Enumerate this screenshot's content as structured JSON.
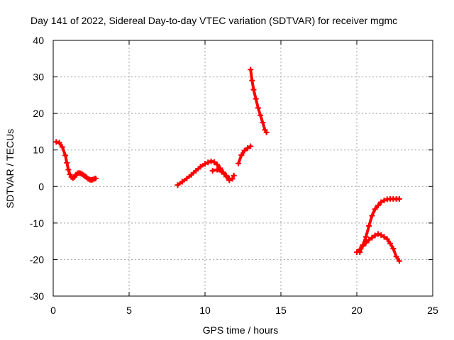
{
  "chart_data": {
    "type": "scatter",
    "title": "Day 141 of 2022, Sidereal Day-to-day VTEC variation (SDTVAR) for receiver mgmc",
    "xlabel": "GPS time / hours",
    "ylabel": "SDTVAR / TECUs",
    "xlim": [
      0,
      25
    ],
    "ylim": [
      -30,
      40
    ],
    "x_ticks": [
      0,
      5,
      10,
      15,
      20,
      25
    ],
    "y_ticks": [
      -30,
      -20,
      -10,
      0,
      10,
      20,
      30,
      40
    ],
    "x_tick_labels": [
      "0",
      "5",
      "10",
      "15",
      "20",
      "25"
    ],
    "y_tick_labels": [
      "-30",
      "-20",
      "-10",
      "0",
      "10",
      "20",
      "30",
      "40"
    ],
    "grid": true,
    "legend": "none",
    "marker": "plus",
    "series_color": "#ff0000",
    "series": [
      {
        "name": "segment-1",
        "x": [
          0.2,
          0.4,
          0.6,
          0.8,
          0.9,
          1.0,
          1.1,
          1.2,
          1.3,
          1.4,
          1.5,
          1.6,
          1.7,
          1.8,
          1.9,
          2.0,
          2.1,
          2.2,
          2.3,
          2.4,
          2.5,
          2.6,
          2.7,
          2.8
        ],
        "y": [
          12.2,
          12.0,
          10.8,
          8.5,
          6.5,
          4.6,
          3.3,
          2.6,
          2.3,
          2.6,
          3.2,
          3.6,
          3.7,
          3.6,
          3.4,
          3.1,
          2.8,
          2.5,
          2.1,
          1.9,
          1.8,
          1.9,
          2.1,
          2.2
        ]
      },
      {
        "name": "segment-2",
        "x": [
          8.2,
          8.5,
          8.8,
          9.1,
          9.4,
          9.7,
          10.0,
          10.2,
          10.4,
          10.6,
          10.8,
          11.0,
          11.2,
          11.4,
          11.6,
          11.8,
          11.9
        ],
        "y": [
          0.4,
          1.3,
          2.2,
          3.2,
          4.3,
          5.4,
          6.2,
          6.6,
          6.9,
          6.7,
          6.0,
          5.0,
          3.9,
          2.7,
          1.7,
          2.1,
          3.0
        ]
      },
      {
        "name": "segment-3",
        "x": [
          10.5,
          10.8,
          11.1,
          11.4,
          11.6
        ],
        "y": [
          4.3,
          4.6,
          4.0,
          3.0,
          2.2
        ]
      },
      {
        "name": "segment-4",
        "x": [
          12.2,
          12.4,
          12.6,
          12.8,
          13.0
        ],
        "y": [
          6.3,
          8.6,
          9.8,
          10.5,
          11.0
        ]
      },
      {
        "name": "segment-5",
        "x": [
          13.0,
          13.1,
          13.2,
          13.35,
          13.5,
          13.65,
          13.8,
          13.95,
          14.05
        ],
        "y": [
          32.0,
          29.0,
          26.5,
          24.0,
          21.5,
          19.5,
          17.5,
          15.5,
          14.8
        ]
      },
      {
        "name": "segment-6",
        "x": [
          20.0,
          20.2,
          20.4,
          20.6,
          20.8,
          21.0,
          21.2,
          21.4,
          21.6,
          21.8,
          22.0,
          22.2,
          22.4,
          22.6,
          22.8
        ],
        "y": [
          -18.0,
          -17.2,
          -16.3,
          -15.4,
          -14.6,
          -14.0,
          -13.4,
          -13.0,
          -13.3,
          -13.8,
          -14.4,
          -15.6,
          -17.0,
          -19.2,
          -20.4
        ]
      },
      {
        "name": "segment-7",
        "x": [
          20.2,
          20.4,
          20.6,
          20.8,
          21.0,
          21.2,
          21.4,
          21.6,
          21.8,
          22.0,
          22.2,
          22.4,
          22.6,
          22.8
        ],
        "y": [
          -18.0,
          -16.0,
          -13.8,
          -10.8,
          -8.0,
          -6.2,
          -5.2,
          -4.3,
          -3.8,
          -3.5,
          -3.4,
          -3.4,
          -3.4,
          -3.4
        ]
      }
    ]
  }
}
